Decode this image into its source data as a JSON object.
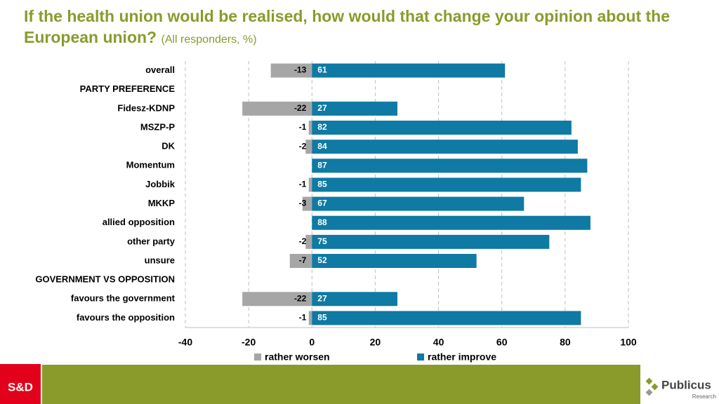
{
  "chart_data": {
    "type": "bar",
    "orientation": "horizontal",
    "title": "If the health union would be realised, how would that change your opinion about the European union?",
    "subtitle": "(All responders, %)",
    "categories": [
      "overall",
      "PARTY PREFERENCE",
      "Fidesz-KDNP",
      "MSZP-P",
      "DK",
      "Momentum",
      "Jobbik",
      "MKKP",
      "allied opposition",
      "other party",
      "unsure",
      "GOVERNMENT VS OPPOSITION",
      "favours the government",
      "favours the opposition"
    ],
    "series": [
      {
        "name": "rather worsen",
        "color": "#a6a6a6",
        "values": [
          -13,
          null,
          -22,
          -1,
          -2,
          null,
          -1,
          -3,
          null,
          -2,
          -7,
          null,
          -22,
          -1
        ]
      },
      {
        "name": "rather improve",
        "color": "#0f7aa3",
        "values": [
          61,
          null,
          27,
          82,
          84,
          87,
          85,
          67,
          88,
          75,
          52,
          null,
          27,
          85
        ]
      }
    ],
    "xlim": [
      -40,
      100
    ],
    "xticks": [
      -40,
      -20,
      0,
      20,
      40,
      60,
      80,
      100
    ],
    "grid": true
  },
  "footer": {
    "badge": "S&D",
    "logo": "Publicus",
    "logo_sub": "Research"
  }
}
